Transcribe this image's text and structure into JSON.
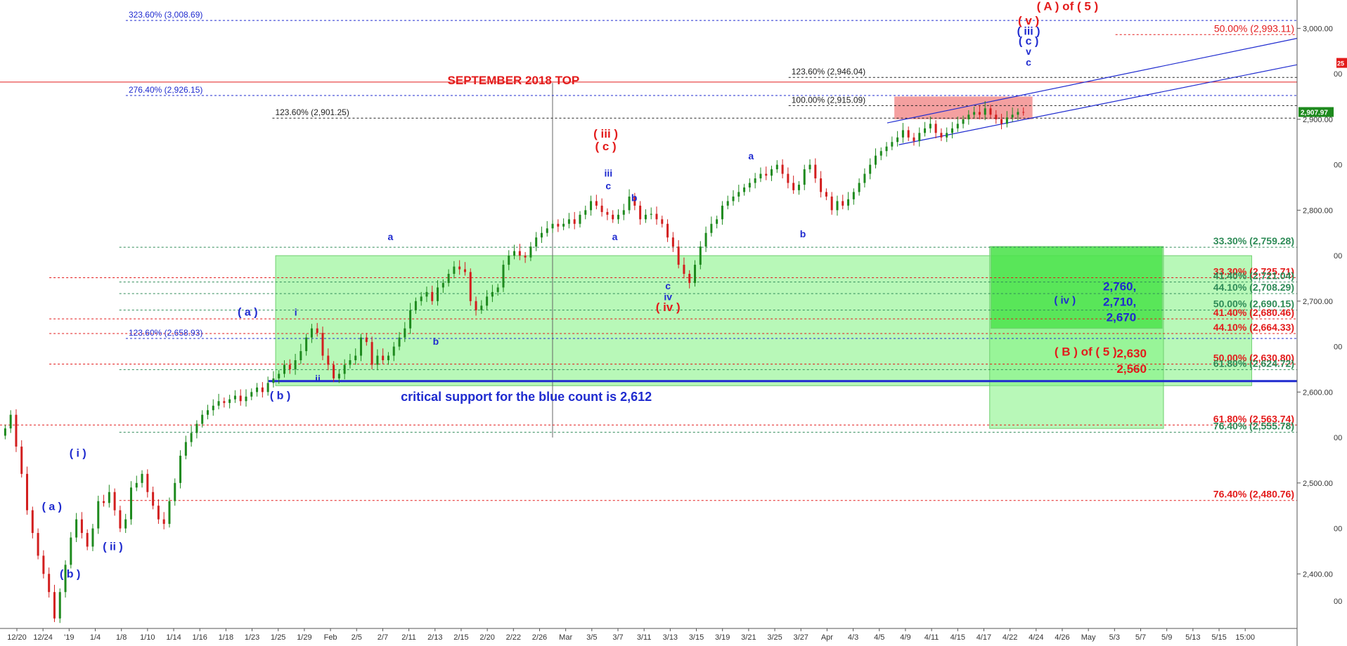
{
  "chart_data": {
    "type": "candlestick",
    "ylim": [
      2340,
      3025
    ],
    "x_axis_ticks": [
      "12/20",
      "12/24",
      "'19",
      "1/4",
      "1/8",
      "1/10",
      "1/14",
      "1/16",
      "1/18",
      "1/23",
      "1/25",
      "1/29",
      "Feb",
      "2/5",
      "2/7",
      "2/11",
      "2/13",
      "2/15",
      "2/20",
      "2/22",
      "2/26",
      "Mar",
      "3/5",
      "3/7",
      "3/11",
      "3/13",
      "3/15",
      "3/19",
      "3/21",
      "3/25",
      "3/27",
      "Apr",
      "4/3",
      "4/5",
      "4/9",
      "4/11",
      "4/15",
      "4/17",
      "4/22",
      "4/24",
      "4/26",
      "May",
      "5/3",
      "5/7",
      "5/9",
      "5/13",
      "5/15",
      "15:00"
    ],
    "y_axis_ticks": [
      {
        "v": 3000,
        "label": "3,000.00"
      },
      {
        "v": 2900,
        "label": "2,900.00"
      },
      {
        "v": 2800,
        "label": "2,800.00"
      },
      {
        "v": 2700,
        "label": "2,700.00"
      },
      {
        "v": 2600,
        "label": "2,600.00"
      },
      {
        "v": 2500,
        "label": "2,500.00"
      },
      {
        "v": 2400,
        "label": "2,400.00"
      }
    ],
    "y_axis_minor_ticks": [
      {
        "v": 2950,
        "label": "00"
      },
      {
        "v": 2850,
        "label": "00"
      },
      {
        "v": 2750,
        "label": "00"
      },
      {
        "v": 2650,
        "label": "00"
      },
      {
        "v": 2550,
        "label": "00"
      },
      {
        "v": 2450,
        "label": "00"
      },
      {
        "v": 2370,
        "label": "00"
      }
    ],
    "last_price": {
      "v": 2907.97,
      "label": "2,907.97"
    },
    "last_price_side_marker": "25",
    "candle_closes": [
      2560,
      2575,
      2540,
      2510,
      2470,
      2445,
      2420,
      2400,
      2380,
      2351,
      2380,
      2410,
      2440,
      2460,
      2445,
      2430,
      2450,
      2480,
      2478,
      2490,
      2470,
      2450,
      2460,
      2495,
      2500,
      2510,
      2490,
      2475,
      2460,
      2455,
      2480,
      2500,
      2530,
      2545,
      2555,
      2565,
      2575,
      2580,
      2585,
      2590,
      2588,
      2592,
      2596,
      2590,
      2595,
      2600,
      2605,
      2600,
      2610,
      2615,
      2620,
      2630,
      2625,
      2635,
      2645,
      2660,
      2670,
      2665,
      2640,
      2630,
      2615,
      2620,
      2630,
      2635,
      2640,
      2660,
      2655,
      2630,
      2640,
      2635,
      2640,
      2650,
      2660,
      2670,
      2690,
      2700,
      2705,
      2710,
      2700,
      2715,
      2720,
      2730,
      2738,
      2735,
      2732,
      2700,
      2690,
      2695,
      2705,
      2710,
      2715,
      2740,
      2750,
      2755,
      2750,
      2748,
      2760,
      2770,
      2775,
      2780,
      2785,
      2782,
      2785,
      2790,
      2785,
      2795,
      2800,
      2810,
      2805,
      2798,
      2795,
      2790,
      2795,
      2800,
      2815,
      2805,
      2790,
      2795,
      2796,
      2790,
      2785,
      2770,
      2760,
      2740,
      2730,
      2720,
      2740,
      2760,
      2775,
      2785,
      2790,
      2805,
      2810,
      2815,
      2820,
      2825,
      2830,
      2835,
      2840,
      2838,
      2845,
      2850,
      2840,
      2830,
      2822,
      2828,
      2845,
      2850,
      2835,
      2820,
      2815,
      2800,
      2810,
      2805,
      2812,
      2820,
      2830,
      2840,
      2850,
      2860,
      2865,
      2870,
      2875,
      2880,
      2888,
      2880,
      2876,
      2885,
      2890,
      2895,
      2885,
      2880,
      2885,
      2890,
      2895,
      2900,
      2905,
      2908,
      2905,
      2912,
      2905,
      2900,
      2895,
      2902,
      2905,
      2908,
      2907.97
    ],
    "fib_levels": [
      {
        "label": "323.60% (3,008.69)",
        "v": 3008.69,
        "color": "#1f2bcf",
        "x_start": 0.097
      },
      {
        "label": "50.00% (2,993.11)",
        "v": 2993.11,
        "color": "#e31b1b",
        "x_start": 0.86
      },
      {
        "label": "123.60% (2,946.04)",
        "v": 2946.04,
        "color": "#222222",
        "x_start": 0.608
      },
      {
        "label": "276.40% (2,926.15)",
        "v": 2926.15,
        "color": "#1f2bcf",
        "x_start": 0.097
      },
      {
        "label": "100.00% (2,915.09)",
        "v": 2915.09,
        "color": "#222222",
        "x_start": 0.608
      },
      {
        "label": "123.60% (2,901.25)",
        "v": 2901.25,
        "color": "#222222",
        "x_start": 0.21
      },
      {
        "label": "33.30% (2,759.28)",
        "v": 2759.28,
        "color": "#2e8b57",
        "x_start": 0.092
      },
      {
        "label": "33.30% (2,725.71)",
        "v": 2725.71,
        "color": "#e31b1b",
        "x_start": 0.038
      },
      {
        "label": "41.40% (2,721.04)",
        "v": 2721.04,
        "color": "#2e8b57",
        "x_start": 0.092
      },
      {
        "label": "44.10% (2,708.29)",
        "v": 2708.29,
        "color": "#2e8b57",
        "x_start": 0.092
      },
      {
        "label": "50.00% (2,690.15)",
        "v": 2690.15,
        "color": "#2e8b57",
        "x_start": 0.092
      },
      {
        "label": "41.40% (2,680.46)",
        "v": 2680.46,
        "color": "#e31b1b",
        "x_start": 0.038
      },
      {
        "label": "44.10% (2,664.33)",
        "v": 2664.33,
        "color": "#e31b1b",
        "x_start": 0.038
      },
      {
        "label": "123.60% (2,658.93)",
        "v": 2658.93,
        "color": "#1f2bcf",
        "x_start": 0.097
      },
      {
        "label": "50.00% (2,630.80)",
        "v": 2630.8,
        "color": "#e31b1b",
        "x_start": 0.038
      },
      {
        "label": "61.80% (2,624.72)",
        "v": 2624.72,
        "color": "#2e8b57",
        "x_start": 0.092
      },
      {
        "label": "61.80% (2,563.74)",
        "v": 2563.74,
        "color": "#e31b1b",
        "x_start": 0.0
      },
      {
        "label": "76.40% (2,555.78)",
        "v": 2555.78,
        "color": "#2e8b57",
        "x_start": 0.092
      },
      {
        "label": "76.40% (2,480.76)",
        "v": 2480.76,
        "color": "#e31b1b",
        "x_start": 0.092
      }
    ],
    "september_2018_top": {
      "label": "SEPTEMBER 2018 TOP",
      "v": 2940.91
    },
    "critical_support": {
      "label": "critical support for the blue count is 2,612",
      "v": 2612
    },
    "projection_boxes": [
      {
        "name": "blue-count-zone",
        "v_top": 2750,
        "v_bottom": 2607,
        "color": "#7df27d"
      },
      {
        "name": "wave-iv-target",
        "v_top": 2760,
        "v_bottom": 2560,
        "color": "#7df27d"
      },
      {
        "name": "wave-iv-inner",
        "v_top": 2760,
        "v_bottom": 2670,
        "color": "#44e044"
      },
      {
        "name": "top-resistance",
        "v_top": 2925,
        "v_bottom": 2900,
        "color": "#f08080"
      }
    ],
    "projection_text": {
      "green": [
        "2,760,",
        "2,710,",
        "2,670"
      ],
      "red": [
        "2,630",
        "2,560"
      ]
    },
    "wave_labels": [
      {
        "text": "( A ) of ( 5 )",
        "color": "#e31b1b",
        "size": 17,
        "fx": 0.823,
        "v": 3020
      },
      {
        "text": "( v )",
        "color": "#e31b1b",
        "size": 17,
        "fx": 0.793,
        "v": 3004
      },
      {
        "text": "( iii )",
        "color": "#1f2bcf",
        "size": 16,
        "fx": 0.793,
        "v": 2993
      },
      {
        "text": "( c )",
        "color": "#1f2bcf",
        "size": 16,
        "fx": 0.793,
        "v": 2982
      },
      {
        "text": "v",
        "color": "#1f2bcf",
        "size": 14,
        "fx": 0.793,
        "v": 2971
      },
      {
        "text": "c",
        "color": "#1f2bcf",
        "size": 14,
        "fx": 0.793,
        "v": 2959
      },
      {
        "text": "( iii )",
        "color": "#e31b1b",
        "size": 17,
        "fx": 0.467,
        "v": 2880
      },
      {
        "text": "( c )",
        "color": "#e31b1b",
        "size": 17,
        "fx": 0.467,
        "v": 2866
      },
      {
        "text": "iii",
        "color": "#1f2bcf",
        "size": 14,
        "fx": 0.469,
        "v": 2837
      },
      {
        "text": "c",
        "color": "#1f2bcf",
        "size": 14,
        "fx": 0.469,
        "v": 2823
      },
      {
        "text": "b",
        "color": "#1f2bcf",
        "size": 14,
        "fx": 0.489,
        "v": 2810
      },
      {
        "text": "a",
        "color": "#1f2bcf",
        "size": 14,
        "fx": 0.474,
        "v": 2767
      },
      {
        "text": "c",
        "color": "#1f2bcf",
        "size": 14,
        "fx": 0.515,
        "v": 2713
      },
      {
        "text": "iv",
        "color": "#1f2bcf",
        "size": 14,
        "fx": 0.515,
        "v": 2701
      },
      {
        "text": "( iv )",
        "color": "#e31b1b",
        "size": 17,
        "fx": 0.515,
        "v": 2689
      },
      {
        "text": "a",
        "color": "#1f2bcf",
        "size": 14,
        "fx": 0.579,
        "v": 2856
      },
      {
        "text": "b",
        "color": "#1f2bcf",
        "size": 14,
        "fx": 0.619,
        "v": 2770
      },
      {
        "text": "a",
        "color": "#1f2bcf",
        "size": 14,
        "fx": 0.301,
        "v": 2767
      },
      {
        "text": "b",
        "color": "#1f2bcf",
        "size": 14,
        "fx": 0.336,
        "v": 2652
      },
      {
        "text": "( a )",
        "color": "#1f2bcf",
        "size": 16,
        "fx": 0.191,
        "v": 2684
      },
      {
        "text": "i",
        "color": "#1f2bcf",
        "size": 14,
        "fx": 0.228,
        "v": 2684
      },
      {
        "text": "ii",
        "color": "#1f2bcf",
        "size": 14,
        "fx": 0.245,
        "v": 2611
      },
      {
        "text": "( b )",
        "color": "#1f2bcf",
        "size": 16,
        "fx": 0.216,
        "v": 2592
      },
      {
        "text": "( i )",
        "color": "#1f2bcf",
        "size": 16,
        "fx": 0.06,
        "v": 2529
      },
      {
        "text": "( a )",
        "color": "#1f2bcf",
        "size": 16,
        "fx": 0.04,
        "v": 2470
      },
      {
        "text": "( ii )",
        "color": "#1f2bcf",
        "size": 16,
        "fx": 0.087,
        "v": 2426
      },
      {
        "text": "( b )",
        "color": "#1f2bcf",
        "size": 16,
        "fx": 0.054,
        "v": 2396
      },
      {
        "text": "( iv )",
        "color": "#1f2bcf",
        "size": 15,
        "fx": 0.821,
        "v": 2697
      },
      {
        "text": "( B ) of ( 5 )",
        "color": "#e31b1b",
        "size": 17,
        "fx": 0.837,
        "v": 2640
      }
    ]
  }
}
